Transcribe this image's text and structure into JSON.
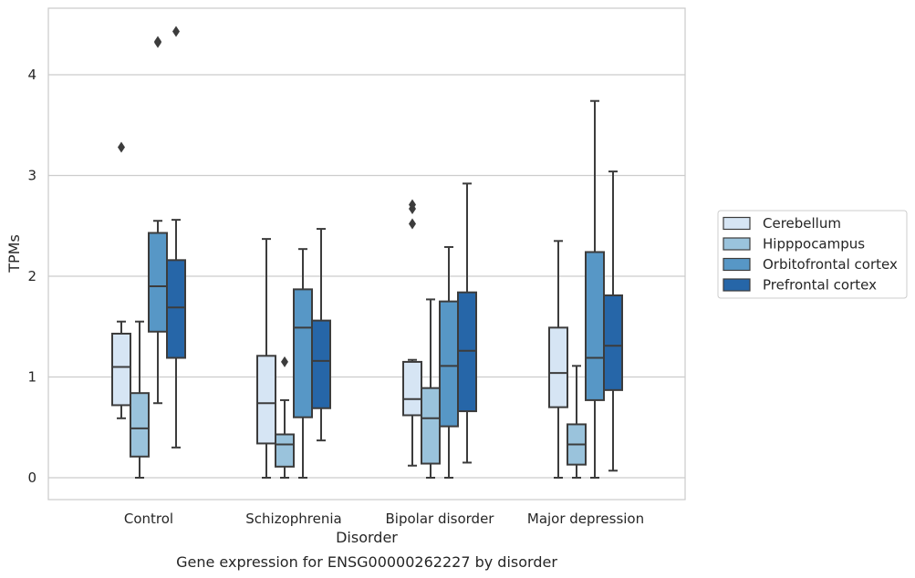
{
  "chart_data": {
    "type": "box",
    "caption": "Gene expression for ENSG00000262227 by disorder",
    "xlabel": "Disorder",
    "ylabel": "TPMs",
    "ylim": [
      -0.22,
      4.65
    ],
    "yticks": [
      0,
      1,
      2,
      3,
      4
    ],
    "grid": "horizontal",
    "legend_position": "right",
    "categories": [
      "Control",
      "Schizophrenia",
      "Bipolar disorder",
      "Major depression"
    ],
    "series": [
      {
        "name": "Cerebellum",
        "color": "#d6e5f4",
        "boxes": [
          {
            "whisker_low": 0.59,
            "q1": 0.72,
            "median": 1.1,
            "q3": 1.43,
            "whisker_high": 1.55,
            "outliers": [
              3.28
            ]
          },
          {
            "whisker_low": 0.0,
            "q1": 0.34,
            "median": 0.74,
            "q3": 1.21,
            "whisker_high": 2.37,
            "outliers": []
          },
          {
            "whisker_low": 0.12,
            "q1": 0.62,
            "median": 0.78,
            "q3": 1.15,
            "whisker_high": 1.17,
            "outliers": [
              2.52,
              2.67,
              2.71
            ]
          },
          {
            "whisker_low": 0.0,
            "q1": 0.7,
            "median": 1.04,
            "q3": 1.49,
            "whisker_high": 2.35,
            "outliers": []
          }
        ]
      },
      {
        "name": "Hipppocampus",
        "color": "#9ac3dc",
        "boxes": [
          {
            "whisker_low": 0.0,
            "q1": 0.21,
            "median": 0.49,
            "q3": 0.84,
            "whisker_high": 1.55,
            "outliers": []
          },
          {
            "whisker_low": 0.0,
            "q1": 0.11,
            "median": 0.33,
            "q3": 0.43,
            "whisker_high": 0.77,
            "outliers": [
              1.15
            ]
          },
          {
            "whisker_low": 0.0,
            "q1": 0.14,
            "median": 0.59,
            "q3": 0.89,
            "whisker_high": 1.77,
            "outliers": []
          },
          {
            "whisker_low": 0.0,
            "q1": 0.13,
            "median": 0.33,
            "q3": 0.53,
            "whisker_high": 1.11,
            "outliers": []
          }
        ]
      },
      {
        "name": "Orbitofrontal cortex",
        "color": "#5797c6",
        "boxes": [
          {
            "whisker_low": 0.74,
            "q1": 1.45,
            "median": 1.9,
            "q3": 2.43,
            "whisker_high": 2.55,
            "outliers": [
              4.32,
              4.33
            ]
          },
          {
            "whisker_low": 0.0,
            "q1": 0.6,
            "median": 1.49,
            "q3": 1.87,
            "whisker_high": 2.27,
            "outliers": []
          },
          {
            "whisker_low": 0.0,
            "q1": 0.51,
            "median": 1.11,
            "q3": 1.75,
            "whisker_high": 2.29,
            "outliers": []
          },
          {
            "whisker_low": 0.0,
            "q1": 0.77,
            "median": 1.19,
            "q3": 2.24,
            "whisker_high": 3.74,
            "outliers": []
          }
        ]
      },
      {
        "name": "Prefrontal cortex",
        "color": "#2666a8",
        "boxes": [
          {
            "whisker_low": 0.3,
            "q1": 1.19,
            "median": 1.69,
            "q3": 2.16,
            "whisker_high": 2.56,
            "outliers": [
              4.43
            ]
          },
          {
            "whisker_low": 0.37,
            "q1": 0.69,
            "median": 1.16,
            "q3": 1.56,
            "whisker_high": 2.47,
            "outliers": []
          },
          {
            "whisker_low": 0.15,
            "q1": 0.66,
            "median": 1.26,
            "q3": 1.84,
            "whisker_high": 2.92,
            "outliers": []
          },
          {
            "whisker_low": 0.07,
            "q1": 0.87,
            "median": 1.31,
            "q3": 1.81,
            "whisker_high": 3.04,
            "outliers": []
          }
        ]
      }
    ],
    "style": {
      "frame_color": "#cccccc",
      "grid_color": "#cccccc",
      "line_color": "#3c3c3c"
    }
  }
}
